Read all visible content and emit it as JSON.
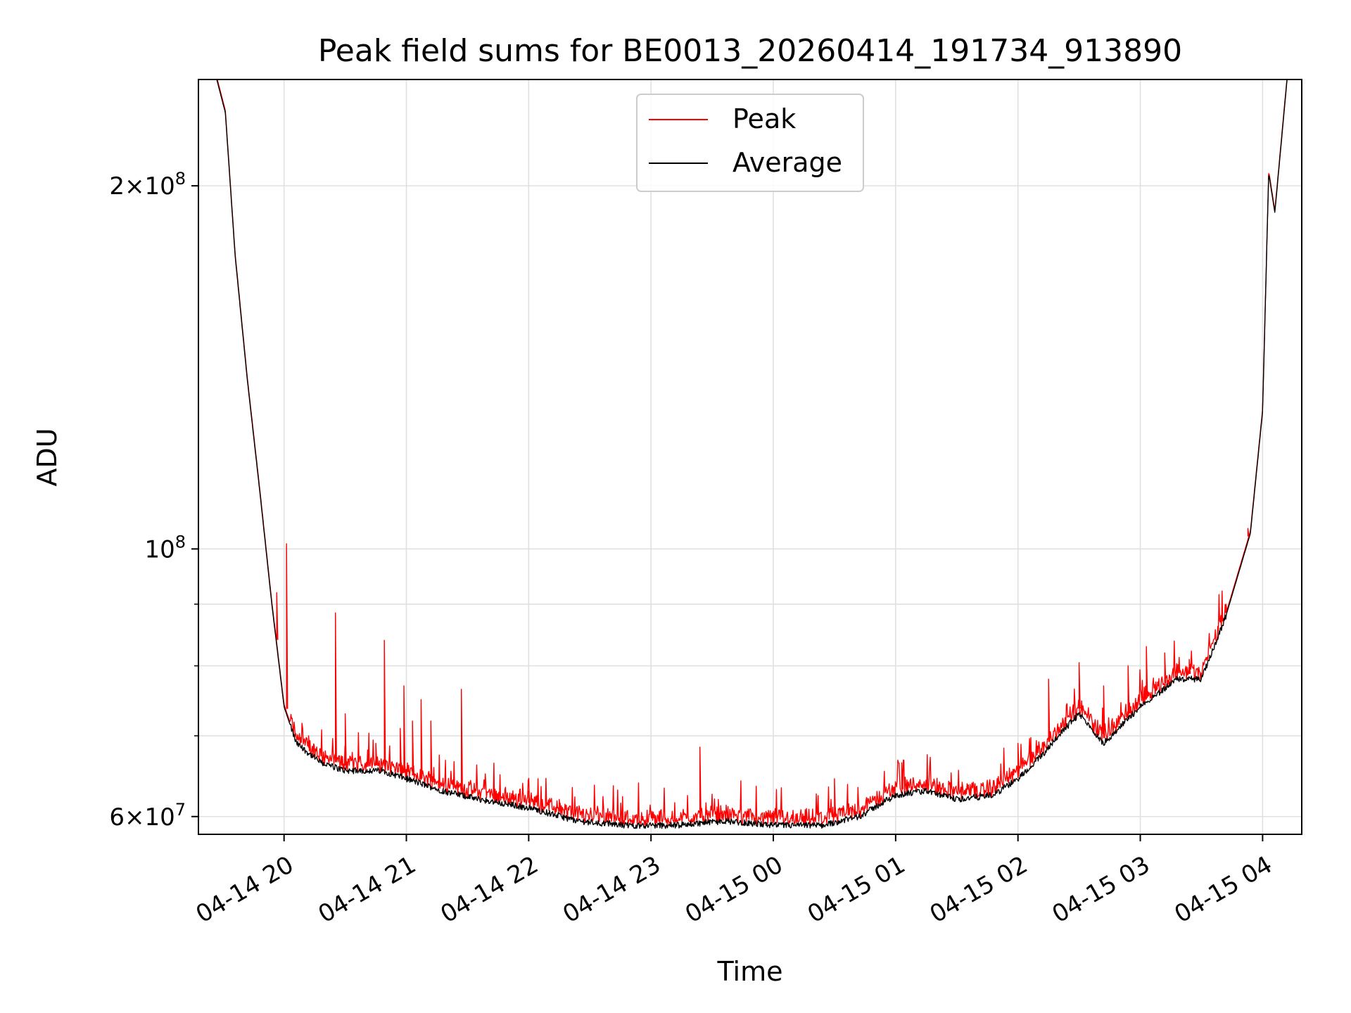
{
  "chart_data": {
    "type": "line",
    "title": "Peak field sums for BE0013_20260414_191734_913890",
    "xlabel": "Time",
    "ylabel": "ADU",
    "yscale": "log",
    "ylim": [
      58000000,
      245000000
    ],
    "xlim_hours_since_2026_04_14_19_00": [
      0.3,
      9.32
    ],
    "grid": true,
    "legend_position": "top-center",
    "x_ticks": [
      {
        "hour": 1,
        "label": "04-14 20"
      },
      {
        "hour": 2,
        "label": "04-14 21"
      },
      {
        "hour": 3,
        "label": "04-14 22"
      },
      {
        "hour": 4,
        "label": "04-14 23"
      },
      {
        "hour": 5,
        "label": "04-15 00"
      },
      {
        "hour": 6,
        "label": "04-15 01"
      },
      {
        "hour": 7,
        "label": "04-15 02"
      },
      {
        "hour": 8,
        "label": "04-15 03"
      },
      {
        "hour": 9,
        "label": "04-15 04"
      }
    ],
    "y_major_ticks": [
      {
        "value": 60000000,
        "mantissa": "6",
        "exponent": "7",
        "times": "×",
        "base": "10"
      },
      {
        "value": 100000000,
        "mantissa": "",
        "exponent": "8",
        "times": "",
        "base": "10"
      },
      {
        "value": 200000000,
        "mantissa": "2",
        "exponent": "8",
        "times": "×",
        "base": "10"
      }
    ],
    "y_minor_ticks": [
      70000000,
      80000000,
      90000000,
      300000000
    ],
    "series": [
      {
        "name": "Peak",
        "color": "#ff0000"
      },
      {
        "name": "Average",
        "color": "#000000"
      }
    ],
    "average_profile": {
      "hours": [
        0.3,
        0.45,
        0.52,
        0.6,
        0.7,
        0.8,
        0.9,
        1.0,
        1.1,
        1.3,
        1.5,
        1.8,
        2.0,
        2.3,
        2.6,
        3.0,
        3.4,
        3.8,
        4.2,
        4.6,
        5.0,
        5.4,
        5.7,
        6.0,
        6.25,
        6.5,
        6.8,
        7.0,
        7.2,
        7.3,
        7.5,
        7.7,
        8.0,
        8.3,
        8.5,
        8.7,
        8.9,
        9.0,
        9.05,
        9.1,
        9.2,
        9.32
      ],
      "values": [
        245000000,
        245000000,
        230000000,
        175000000,
        138000000,
        112000000,
        90000000,
        74000000,
        69000000,
        66500000,
        65500000,
        65500000,
        64500000,
        63000000,
        62000000,
        61000000,
        59500000,
        59000000,
        59000000,
        59500000,
        59000000,
        59000000,
        60000000,
        62500000,
        63000000,
        62000000,
        62500000,
        64500000,
        67500000,
        69500000,
        73000000,
        69000000,
        74000000,
        78000000,
        78000000,
        88000000,
        103000000,
        130000000,
        205000000,
        190000000,
        245000000,
        245000000
      ]
    },
    "peak_spikes": [
      {
        "hour": 0.94,
        "value": 92000000
      },
      {
        "hour": 1.02,
        "value": 101000000
      },
      {
        "hour": 1.2,
        "value": 70000000
      },
      {
        "hour": 1.42,
        "value": 88500000
      },
      {
        "hour": 1.5,
        "value": 73000000
      },
      {
        "hour": 1.75,
        "value": 69000000
      },
      {
        "hour": 1.82,
        "value": 84000000
      },
      {
        "hour": 1.95,
        "value": 71000000
      },
      {
        "hour": 1.98,
        "value": 77000000
      },
      {
        "hour": 2.05,
        "value": 72000000
      },
      {
        "hour": 2.12,
        "value": 75000000
      },
      {
        "hour": 2.2,
        "value": 72000000
      },
      {
        "hour": 2.45,
        "value": 76500000
      },
      {
        "hour": 3.0,
        "value": 63000000
      },
      {
        "hour": 3.25,
        "value": 62000000
      },
      {
        "hour": 4.4,
        "value": 68500000
      },
      {
        "hour": 4.55,
        "value": 62000000
      },
      {
        "hour": 5.5,
        "value": 64500000
      },
      {
        "hour": 6.05,
        "value": 66500000
      },
      {
        "hour": 7.0,
        "value": 69000000
      },
      {
        "hour": 7.25,
        "value": 78000000
      },
      {
        "hour": 7.5,
        "value": 80500000
      },
      {
        "hour": 7.7,
        "value": 77000000
      },
      {
        "hour": 7.9,
        "value": 80000000
      },
      {
        "hour": 8.05,
        "value": 83000000
      },
      {
        "hour": 8.2,
        "value": 82000000
      },
      {
        "hour": 8.4,
        "value": 81000000
      },
      {
        "hour": 8.7,
        "value": 90000000
      },
      {
        "hour": 8.88,
        "value": 104000000
      }
    ]
  }
}
